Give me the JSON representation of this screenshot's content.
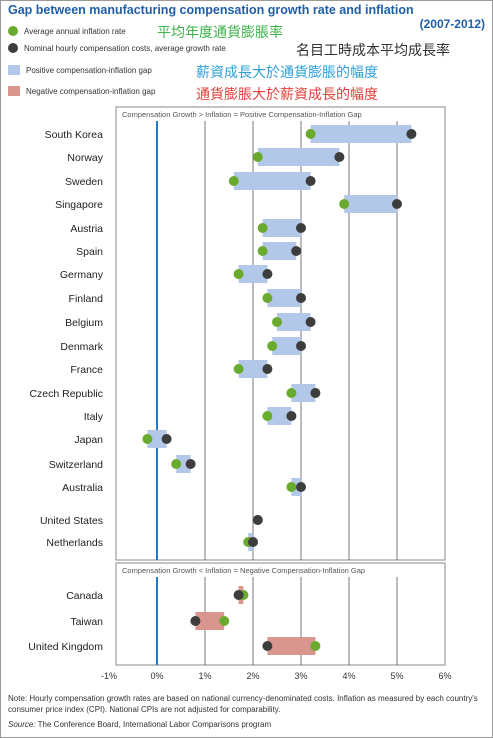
{
  "header": {
    "title": "Gap between manufacturing compensation growth rate and inflation",
    "subtitle": "(2007-2012)"
  },
  "legend": [
    {
      "en": "Average annual inflation rate",
      "zh": "平均年度通貨膨脹率",
      "color": "#6aaa2e",
      "zh_color": "#3fb24b",
      "shape": "circle"
    },
    {
      "en": "Nominal hourly compensation costs, average growth rate",
      "zh": "名目工時成本平均成長率",
      "color": "#3d3d3d",
      "zh_color": "#333333",
      "shape": "circle"
    },
    {
      "en": "Positive compensation-inflation gap",
      "zh": "薪資成長大於通貨膨脹的幅度",
      "color": "#b3c8e8",
      "zh_color": "#2ea1d6",
      "shape": "box"
    },
    {
      "en": "Negative compensation-inflation gap",
      "zh": "通貨膨脹大於薪資成長的幅度",
      "color": "#d9968e",
      "zh_color": "#e0403a",
      "shape": "box"
    }
  ],
  "chart_data": {
    "type": "dumbbell",
    "xlim": [
      -1,
      6
    ],
    "xticks": [
      "-1%",
      "0%",
      "1%",
      "2%",
      "3%",
      "4%",
      "5%",
      "6%"
    ],
    "positive_panel_label": "Compensation Growth > Inflation = Positive Compensation-Inflation Gap",
    "negative_panel_label": "Compensation Growth < Inflation = Negative Compensation-Inflation Gap",
    "positive": [
      {
        "country": "South Korea",
        "inflation": 3.2,
        "compensation": 5.3
      },
      {
        "country": "Norway",
        "inflation": 2.1,
        "compensation": 3.8
      },
      {
        "country": "Sweden",
        "inflation": 1.6,
        "compensation": 3.2
      },
      {
        "country": "Singapore",
        "inflation": 3.9,
        "compensation": 5.0
      },
      {
        "country": "Austria",
        "inflation": 2.2,
        "compensation": 3.0
      },
      {
        "country": "Spain",
        "inflation": 2.2,
        "compensation": 2.9
      },
      {
        "country": "Germany",
        "inflation": 1.7,
        "compensation": 2.3
      },
      {
        "country": "Finland",
        "inflation": 2.3,
        "compensation": 3.0
      },
      {
        "country": "Belgium",
        "inflation": 2.5,
        "compensation": 3.2
      },
      {
        "country": "Denmark",
        "inflation": 2.4,
        "compensation": 3.0
      },
      {
        "country": "France",
        "inflation": 1.7,
        "compensation": 2.3
      },
      {
        "country": "Czech Republic",
        "inflation": 2.8,
        "compensation": 3.3
      },
      {
        "country": "Italy",
        "inflation": 2.3,
        "compensation": 2.8
      },
      {
        "country": "Japan",
        "inflation": -0.2,
        "compensation": 0.2
      },
      {
        "country": "Switzerland",
        "inflation": 0.4,
        "compensation": 0.7
      },
      {
        "country": "Australia",
        "inflation": 2.8,
        "compensation": 3.0
      },
      {
        "country": "United States",
        "inflation": 2.1,
        "compensation": 2.1
      },
      {
        "country": "Netherlands",
        "inflation": 1.9,
        "compensation": 2.0
      }
    ],
    "negative": [
      {
        "country": "Canada",
        "inflation": 1.8,
        "compensation": 1.7
      },
      {
        "country": "Taiwan",
        "inflation": 1.4,
        "compensation": 0.8
      },
      {
        "country": "United Kingdom",
        "inflation": 3.3,
        "compensation": 2.3
      }
    ]
  },
  "footer": {
    "note": "Note: Hourly compensation growth rates are based on national currency-denominated costs. Inflation as measured by each country's consumer price index (CPI). National CPIs are not adjusted for comparability.",
    "source_label": "Source:",
    "source": "The Conference Board, International Labor Comparisons program"
  }
}
